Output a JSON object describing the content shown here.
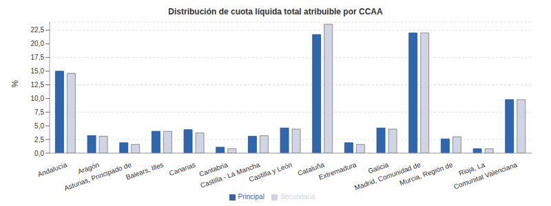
{
  "chart_data": {
    "type": "bar",
    "title": "Distribución de cuota líquida total atribuible por CCAA",
    "y_label": "%",
    "categories": [
      "Andalucía",
      "Aragón",
      "Asturias, Principado de",
      "Balears, Illes",
      "Canarias",
      "Cantabria",
      "Castilla - La Mancha",
      "Castilla y León",
      "Cataluña",
      "Extremadura",
      "Galicia",
      "Madrid, Comunidad de",
      "Murcia, Región de",
      "Rioja, La",
      "Comunitat Valenciana"
    ],
    "series": [
      {
        "name": "Principal",
        "color": "#2f66ae",
        "values": [
          15.0,
          3.2,
          1.9,
          4.0,
          4.3,
          1.1,
          3.1,
          4.6,
          21.7,
          1.9,
          4.6,
          22.0,
          2.6,
          0.8,
          9.8
        ]
      },
      {
        "name": "Secundaria",
        "color": "#d0d4e4",
        "values": [
          14.6,
          3.1,
          1.6,
          4.0,
          3.7,
          0.8,
          3.2,
          4.4,
          23.6,
          1.6,
          4.4,
          22.0,
          3.0,
          0.8,
          9.8
        ]
      }
    ],
    "ylim": [
      0,
      24
    ],
    "yticks": [
      {
        "value": 0,
        "label": "0,0"
      },
      {
        "value": 2.5,
        "label": "2,5"
      },
      {
        "value": 5,
        "label": "5,0"
      },
      {
        "value": 7.5,
        "label": "7,5"
      },
      {
        "value": 10,
        "label": "10,0"
      },
      {
        "value": 12.5,
        "label": "12,5"
      },
      {
        "value": 15,
        "label": "15,0"
      },
      {
        "value": 17.5,
        "label": "17,5"
      },
      {
        "value": 20,
        "label": "20,0"
      },
      {
        "value": 22.5,
        "label": "22,5"
      }
    ],
    "grid": true,
    "legend": "bottom"
  }
}
